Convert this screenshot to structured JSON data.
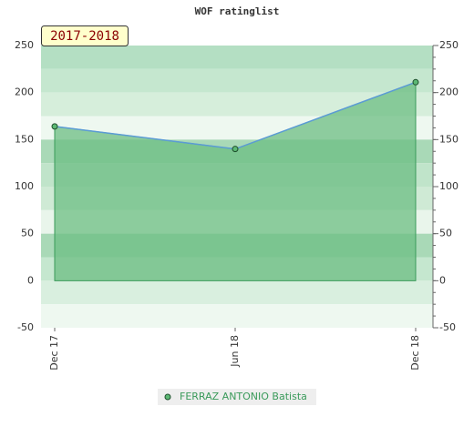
{
  "chart_data": {
    "type": "line",
    "title": "WOF ratinglist",
    "annotation": "2017-2018",
    "categories": [
      "Dec 17",
      "Jun 18",
      "Dec 18"
    ],
    "series": [
      {
        "name": "FERRAZ ANTONIO Batista",
        "color": "#5b9bd5",
        "fill": "#6cbd83",
        "values": [
          164,
          140,
          211
        ]
      }
    ],
    "ylim": [
      -50,
      250
    ],
    "yticks": [
      -50,
      0,
      50,
      100,
      150,
      200,
      250
    ],
    "y2lim": [
      -50,
      250
    ],
    "y2ticks": [
      -50,
      0,
      50,
      100,
      150,
      200,
      250
    ]
  }
}
